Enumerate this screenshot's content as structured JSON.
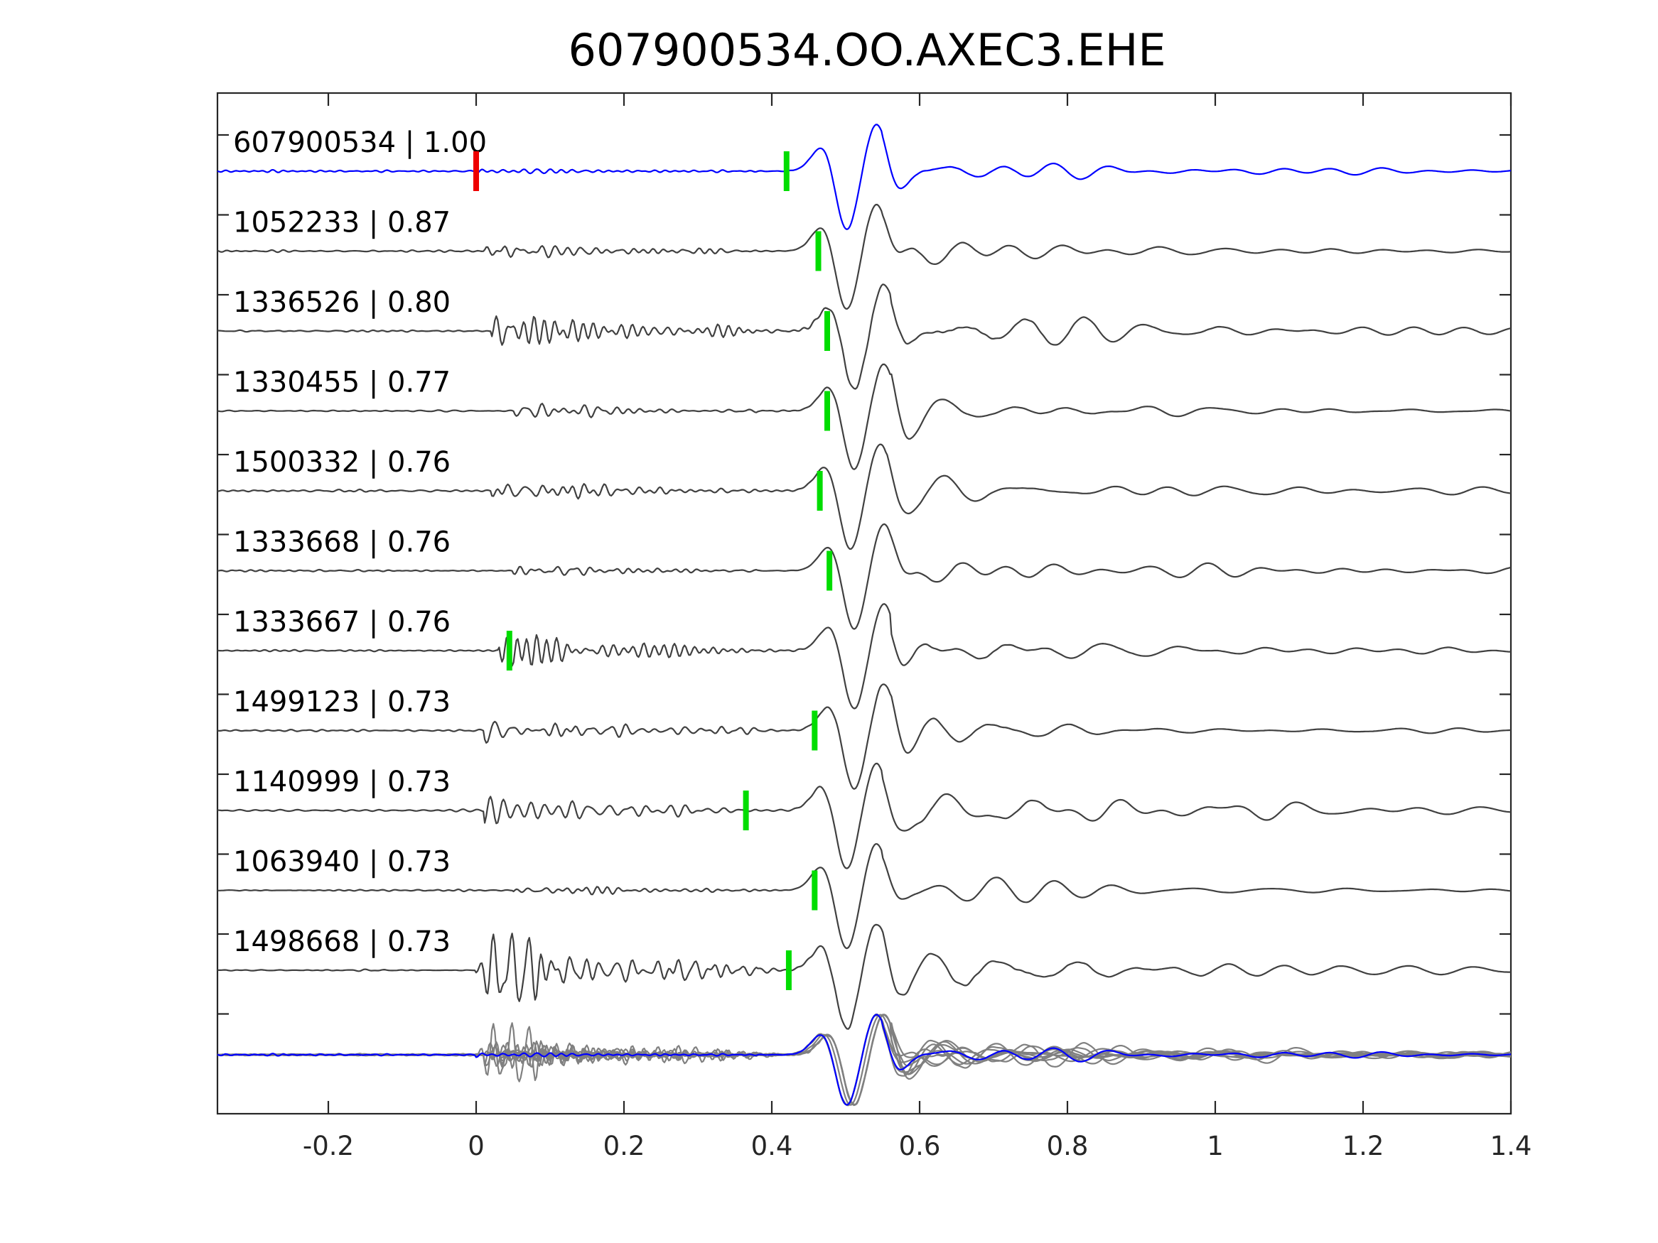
{
  "chart_data": {
    "type": "line",
    "title": "607900534.OO.AXEC3.EHE",
    "xlabel": "",
    "ylabel": "",
    "xlim": [
      -0.35,
      1.4
    ],
    "xticks": [
      -0.2,
      0,
      0.2,
      0.4,
      0.6,
      0.8,
      1,
      1.2,
      1.4
    ],
    "xtick_labels": [
      "-0.2",
      "0",
      "0.2",
      "0.4",
      "0.6",
      "0.8",
      "1",
      "1.2",
      "1.4"
    ],
    "grid": false,
    "colors": {
      "template": "#0000ff",
      "trace": "#404040",
      "overlay": "#808080",
      "detection_pick": "#00dd00",
      "reference_pick": "#ee0000"
    },
    "traces": [
      {
        "label": "607900534 | 1.00",
        "id": "607900534",
        "cc": 1.0,
        "pick": 0.42,
        "main_t": 0.5,
        "noise": 0.1,
        "noise_start": 0.0,
        "coda": 0.45,
        "template": true
      },
      {
        "label": "1052233 | 0.87",
        "id": "1052233",
        "cc": 0.87,
        "pick": 0.463,
        "main_t": 0.5,
        "noise": 0.18,
        "noise_start": 0.01,
        "coda": 0.3
      },
      {
        "label": "1336526 | 0.80",
        "id": "1336526",
        "cc": 0.8,
        "pick": 0.475,
        "main_t": 0.51,
        "noise": 0.45,
        "noise_start": 0.02,
        "coda": 0.55
      },
      {
        "label": "1330455 | 0.77",
        "id": "1330455",
        "cc": 0.77,
        "pick": 0.475,
        "main_t": 0.51,
        "noise": 0.18,
        "noise_start": 0.05,
        "coda": 0.35
      },
      {
        "label": "1500332 | 0.76",
        "id": "1500332",
        "cc": 0.76,
        "pick": 0.465,
        "main_t": 0.505,
        "noise": 0.22,
        "noise_start": 0.02,
        "coda": 0.4
      },
      {
        "label": "1333668 | 0.76",
        "id": "1333668",
        "cc": 0.76,
        "pick": 0.478,
        "main_t": 0.51,
        "noise": 0.12,
        "noise_start": 0.05,
        "coda": 0.4
      },
      {
        "label": "1333667 | 0.76",
        "id": "1333667",
        "cc": 0.76,
        "pick": 0.045,
        "main_t": 0.51,
        "noise": 0.3,
        "noise_start": 0.03,
        "coda": 0.4
      },
      {
        "label": "1499123 | 0.73",
        "id": "1499123",
        "cc": 0.73,
        "pick": 0.458,
        "main_t": 0.51,
        "noise": 0.25,
        "noise_start": 0.01,
        "coda": 0.55
      },
      {
        "label": "1140999 | 0.73",
        "id": "1140999",
        "cc": 0.73,
        "pick": 0.365,
        "main_t": 0.5,
        "noise": 0.3,
        "noise_start": 0.01,
        "coda": 0.45
      },
      {
        "label": "1063940 | 0.73",
        "id": "1063940",
        "cc": 0.73,
        "pick": 0.458,
        "main_t": 0.5,
        "noise": 0.16,
        "noise_start": 0.05,
        "coda": 0.35
      },
      {
        "label": "1498668 | 0.73",
        "id": "1498668",
        "cc": 0.73,
        "pick": 0.423,
        "main_t": 0.5,
        "noise": 0.85,
        "noise_start": 0.0,
        "coda": 0.7
      }
    ],
    "reference_pick": 0.0,
    "stack_overlay": true
  }
}
